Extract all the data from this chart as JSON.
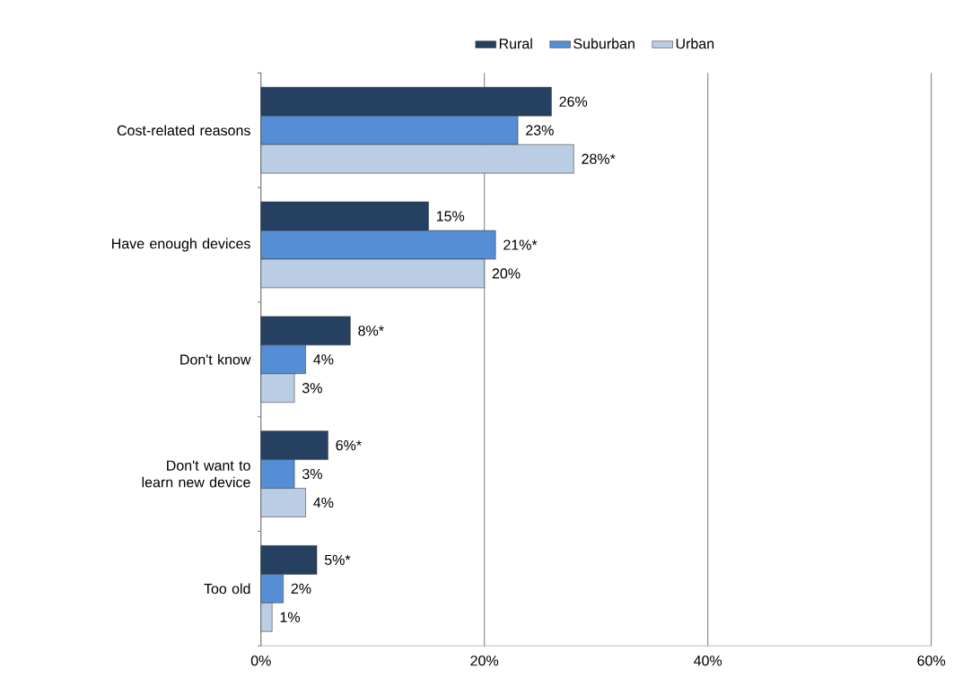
{
  "chart_data": {
    "type": "bar",
    "orientation": "horizontal",
    "categories": [
      "Cost-related reasons",
      "Have enough devices",
      "Don't know",
      "Don't want to learn new device",
      "Too old"
    ],
    "series": [
      {
        "name": "Rural",
        "color": "#254061",
        "values": [
          26,
          15,
          8,
          6,
          5
        ],
        "value_labels": [
          "26%",
          "15%",
          "8%*",
          "6%*",
          "5%*"
        ]
      },
      {
        "name": "Suburban",
        "color": "#558ed5",
        "values": [
          23,
          21,
          4,
          3,
          2
        ],
        "value_labels": [
          "23%",
          "21%*",
          "4%",
          "3%",
          "2%"
        ]
      },
      {
        "name": "Urban",
        "color": "#b9cde5",
        "values": [
          28,
          20,
          3,
          4,
          1
        ],
        "value_labels": [
          "28%*",
          "20%",
          "3%",
          "4%",
          "1%"
        ]
      }
    ],
    "xlim": [
      0,
      60
    ],
    "xticks": [
      {
        "value": 0,
        "label": "0%"
      },
      {
        "value": 20,
        "label": "20%"
      },
      {
        "value": 40,
        "label": "40%"
      },
      {
        "value": 60,
        "label": "60%"
      }
    ],
    "grid": "x",
    "legend": "top"
  }
}
